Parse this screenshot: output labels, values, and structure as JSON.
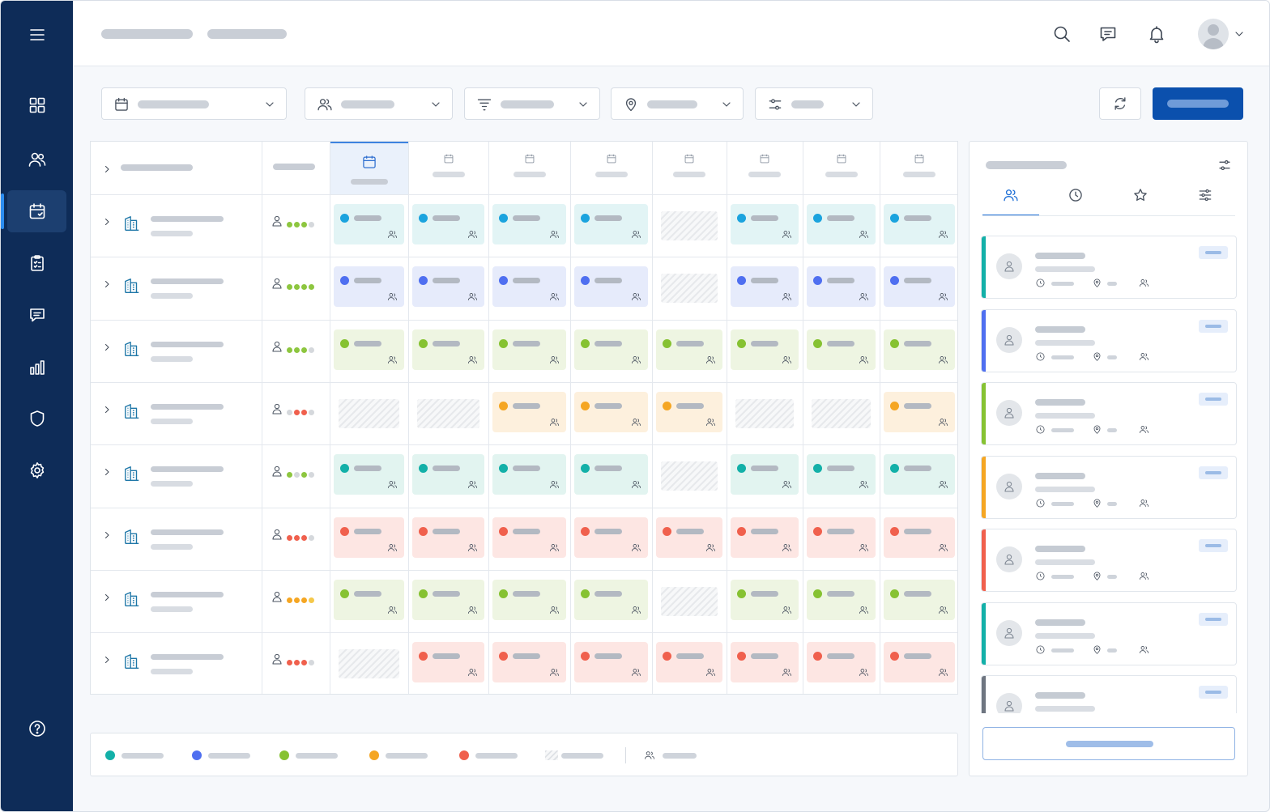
{
  "app": {
    "title": "",
    "colors": {
      "sidebar": "#0e2c58",
      "primary": "#0b50ad",
      "teal": "#13b0a8",
      "blue": "#4f6ff0",
      "green": "#86c232",
      "orange": "#f5a623",
      "red": "#f0604d",
      "cyan": "#1ba3de"
    }
  },
  "sidebar": {
    "items": [
      {
        "icon": "menu-icon",
        "active": false
      },
      {
        "icon": "dashboard-grid-icon",
        "active": false
      },
      {
        "icon": "users-icon",
        "active": false
      },
      {
        "icon": "calendar-icon",
        "active": true
      },
      {
        "icon": "clipboard-list-icon",
        "active": false
      },
      {
        "icon": "chat-icon",
        "active": false
      },
      {
        "icon": "bar-chart-icon",
        "active": false
      },
      {
        "icon": "shield-icon",
        "active": false
      },
      {
        "icon": "settings-gear-icon",
        "active": false
      },
      {
        "icon": "help-circle-icon",
        "active": false
      }
    ]
  },
  "header": {
    "icons": [
      "search-icon",
      "message-icon",
      "bell-icon",
      "avatar",
      "chevron-down-icon"
    ]
  },
  "filters": {
    "items": [
      {
        "icon": "calendar-icon"
      },
      {
        "icon": "users-icon"
      },
      {
        "icon": "filter-icon"
      },
      {
        "icon": "location-pin-icon"
      },
      {
        "icon": "sliders-icon"
      }
    ],
    "actions": [
      "refresh-icon",
      "primary-button"
    ]
  },
  "schedule": {
    "columns": 8,
    "today_column": 0,
    "rows": [
      {
        "staffing_dots": [
          "#8dc63f",
          "#8dc63f",
          "#8dc63f",
          "#d5d8dc"
        ],
        "color": "#1ba3de",
        "bg": "#e2f4f5",
        "empty": [
          4
        ]
      },
      {
        "staffing_dots": [
          "#8dc63f",
          "#8dc63f",
          "#8dc63f",
          "#8dc63f"
        ],
        "color": "#4f6ff0",
        "bg": "#e6ebfb",
        "empty": [
          4
        ]
      },
      {
        "staffing_dots": [
          "#8dc63f",
          "#8dc63f",
          "#8dc63f",
          "#d5d8dc"
        ],
        "color": "#86c232",
        "bg": "#eef5e2",
        "empty": []
      },
      {
        "staffing_dots": [
          "#d5d8dc",
          "#f0604d",
          "#f0604d",
          "#d5d8dc"
        ],
        "color": "#f5a623",
        "bg": "#fdf0dd",
        "empty": [
          0,
          1,
          5,
          6
        ]
      },
      {
        "staffing_dots": [
          "#8dc63f",
          "#d5d8dc",
          "#8dc63f",
          "#d5d8dc"
        ],
        "color": "#13b0a8",
        "bg": "#e2f4f0",
        "empty": [
          4
        ]
      },
      {
        "staffing_dots": [
          "#f0604d",
          "#f0604d",
          "#f0604d",
          "#d5d8dc"
        ],
        "color": "#f0604d",
        "bg": "#fde6e3",
        "empty": []
      },
      {
        "staffing_dots": [
          "#f5a623",
          "#f5a623",
          "#f5a623",
          "#f5c84a"
        ],
        "color": "#86c232",
        "bg": "#eef5e2",
        "empty": [
          4
        ]
      },
      {
        "staffing_dots": [
          "#f0604d",
          "#f0604d",
          "#f0604d",
          "#d5d8dc"
        ],
        "color": "#f0604d",
        "bg": "#fde6e3",
        "empty": [
          0
        ]
      }
    ]
  },
  "legend": {
    "items": [
      {
        "color": "#13b0a8"
      },
      {
        "color": "#4f6ff0"
      },
      {
        "color": "#86c232"
      },
      {
        "color": "#f5a623"
      },
      {
        "color": "#f0604d"
      },
      {
        "color": "hatch"
      }
    ]
  },
  "panel": {
    "tabs": [
      {
        "icon": "users-icon",
        "active": true
      },
      {
        "icon": "clock-icon",
        "active": false
      },
      {
        "icon": "star-icon",
        "active": false
      },
      {
        "icon": "sliders-icon",
        "active": false
      }
    ],
    "cards": [
      {
        "accent": "#13b0a8"
      },
      {
        "accent": "#4f6ff0"
      },
      {
        "accent": "#86c232"
      },
      {
        "accent": "#f5a623"
      },
      {
        "accent": "#f0604d"
      },
      {
        "accent": "#13b0a8"
      },
      {
        "accent": "#6e7580"
      }
    ]
  }
}
